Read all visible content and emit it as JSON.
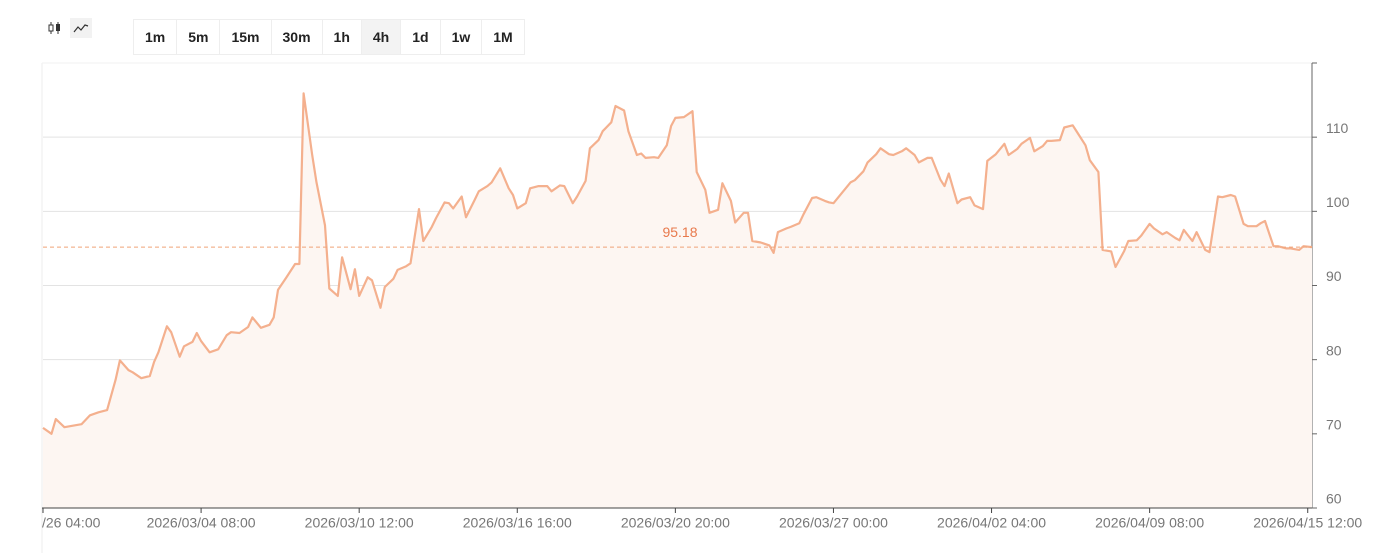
{
  "toolbar": {
    "intervals": [
      "1m",
      "5m",
      "15m",
      "30m",
      "1h",
      "4h",
      "1d",
      "1w",
      "1M"
    ],
    "active_index": 5
  },
  "chart_data": {
    "type": "line",
    "x": [
      0,
      2,
      3,
      5,
      7,
      9,
      11,
      13,
      15,
      17,
      18,
      20,
      21,
      23,
      25,
      26,
      27,
      29,
      30,
      32,
      33,
      35,
      36,
      37,
      39,
      41,
      43,
      44,
      46,
      48,
      49,
      51,
      53,
      54,
      55,
      57,
      59,
      60,
      61,
      63,
      64,
      66,
      67,
      69,
      70,
      72,
      73,
      74,
      76,
      77,
      79,
      80,
      82,
      83,
      85,
      86,
      88,
      89,
      91,
      92,
      94,
      95,
      96,
      98,
      99,
      101,
      102,
      104,
      105,
      107,
      109,
      110,
      111,
      113,
      114,
      116,
      118,
      119,
      121,
      122,
      124,
      125,
      127,
      128,
      130,
      131,
      133,
      134,
      136,
      137,
      139,
      140,
      141,
      143,
      144,
      146,
      147,
      148,
      150,
      152,
      153,
      155,
      156,
      158,
      159,
      161,
      162,
      164,
      165,
      166,
      168,
      170,
      171,
      172,
      174,
      175,
      177,
      178,
      180,
      181,
      183,
      184,
      185,
      187,
      189,
      190,
      192,
      193,
      195,
      196,
      198,
      199,
      201,
      202,
      204,
      205,
      207,
      208,
      210,
      211,
      212,
      214,
      215,
      217,
      218,
      220,
      221,
      223,
      225,
      226,
      228,
      229,
      231,
      232,
      234,
      235,
      236,
      238,
      239,
      241,
      242,
      244,
      245,
      247,
      248,
      250,
      251,
      253,
      254,
      256,
      257,
      259,
      260,
      262,
      263,
      265,
      266,
      267,
      269,
      270,
      272,
      273,
      275,
      276,
      278,
      279,
      281,
      282,
      284,
      285,
      286,
      288,
      289,
      291,
      292,
      294,
      295,
      297
    ],
    "series": [
      {
        "color": "#f4b08e",
        "fill": "#fdf6f2",
        "values": [
          70.8,
          70.0,
          72.0,
          70.9,
          71.1,
          71.3,
          72.5,
          72.9,
          73.2,
          77.3,
          79.9,
          78.6,
          78.3,
          77.5,
          77.8,
          79.7,
          81.0,
          84.5,
          83.7,
          80.4,
          81.8,
          82.4,
          83.6,
          82.5,
          81.0,
          81.4,
          83.3,
          83.7,
          83.6,
          84.4,
          85.7,
          84.3,
          84.7,
          85.7,
          89.4,
          91.1,
          92.9,
          92.9,
          115.9,
          107.6,
          103.9,
          98.1,
          89.6,
          88.6,
          93.8,
          89.5,
          92.2,
          88.6,
          91.1,
          90.7,
          87.0,
          89.8,
          90.9,
          92.1,
          92.6,
          93.0,
          100.3,
          96.0,
          97.9,
          99.1,
          101.2,
          101.1,
          100.4,
          102.0,
          99.2,
          101.5,
          102.7,
          103.4,
          103.9,
          105.8,
          103.1,
          102.2,
          100.4,
          101.1,
          103.1,
          103.4,
          103.4,
          102.7,
          103.5,
          103.4,
          101.1,
          102.0,
          104.1,
          108.5,
          109.6,
          110.8,
          112.0,
          114.2,
          113.6,
          110.8,
          107.6,
          107.8,
          107.2,
          107.3,
          107.2,
          108.9,
          111.5,
          112.6,
          112.7,
          113.5,
          105.3,
          102.9,
          99.8,
          100.2,
          103.8,
          101.4,
          98.5,
          99.8,
          99.8,
          96.0,
          95.8,
          95.4,
          94.4,
          97.2,
          97.7,
          97.9,
          98.4,
          99.6,
          101.8,
          101.9,
          101.4,
          101.2,
          101.1,
          102.5,
          103.9,
          104.2,
          105.4,
          106.6,
          107.7,
          108.5,
          107.7,
          107.6,
          108.1,
          108.5,
          107.6,
          106.6,
          107.2,
          107.2,
          104.3,
          103.4,
          105.1,
          101.1,
          101.6,
          101.9,
          100.8,
          100.3,
          106.8,
          107.7,
          109.1,
          107.6,
          108.4,
          109.1,
          109.9,
          108.1,
          108.8,
          109.5,
          109.5,
          109.6,
          111.3,
          111.6,
          110.7,
          108.9,
          106.9,
          105.3,
          94.8,
          94.6,
          92.5,
          94.6,
          96.0,
          96.1,
          96.7,
          98.3,
          97.7,
          96.9,
          97.2,
          96.4,
          96.1,
          97.5,
          96.0,
          97.2,
          94.8,
          94.5,
          102.0,
          101.9,
          102.2,
          102.0,
          98.3,
          98.0,
          98.0,
          98.4,
          98.7,
          95.3,
          95.3,
          95.0,
          95.0,
          94.8,
          95.3,
          95.18
        ]
      }
    ],
    "xlim": [
      0,
      297
    ],
    "xticks": [
      {
        "value": 0,
        "label": "/26 04:00"
      },
      {
        "value": 37,
        "label": "2026/03/04 08:00"
      },
      {
        "value": 74,
        "label": "2026/03/10 12:00"
      },
      {
        "value": 111,
        "label": "2026/03/16 16:00"
      },
      {
        "value": 148,
        "label": "2026/03/20 20:00"
      },
      {
        "value": 185,
        "label": "2026/03/27 00:00"
      },
      {
        "value": 222,
        "label": "2026/04/02 04:00"
      },
      {
        "value": 259,
        "label": "2026/04/09 08:00"
      },
      {
        "value": 296,
        "label": "2026/04/15 12:00"
      }
    ],
    "ylim": [
      60,
      120
    ],
    "yticks": [
      60,
      70,
      80,
      90,
      100,
      110
    ],
    "grid": true,
    "price_line": {
      "value": 95.18,
      "color": "#f0a378",
      "label_color": "#e8794c"
    }
  }
}
